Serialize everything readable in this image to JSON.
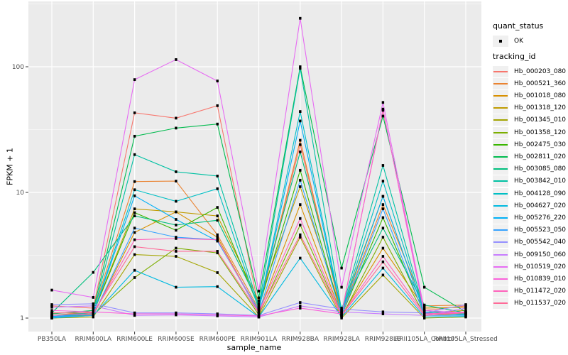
{
  "chart_data": {
    "type": "line",
    "xlabel": "sample_name",
    "ylabel": "FPKM + 1",
    "y_scale": "log10",
    "y_tick_labels": [
      "1",
      "10",
      "100"
    ],
    "y_tick_values": [
      1,
      10,
      100
    ],
    "ylim": [
      0.93,
      320
    ],
    "grid": "on",
    "panel_background": "#EBEBEB",
    "gridline_color": "#FFFFFF",
    "tick_label_color": "#4D4D4D",
    "point_color": "#000000",
    "legend_position": "right",
    "legends": {
      "quant_status_title": "quant_status",
      "ok_label": "OK",
      "tracking_id_title": "tracking_id"
    },
    "categories": [
      "PB350LA",
      "RRIM600LA",
      "RRIM600LE",
      "RRIM600SE",
      "RRIM600PE",
      "RRIM901LA",
      "RRIM928BA",
      "RRIM928LA",
      "RRIM928LB",
      "RRII105LA_Control",
      "RRII105LA_Stressed"
    ],
    "series": [
      {
        "name": "Hb_000203_080",
        "color": "#F8766D",
        "values": [
          1.25,
          1.2,
          43,
          39,
          49,
          1.2,
          24,
          1.1,
          45,
          1.15,
          1.25
        ]
      },
      {
        "name": "Hb_000521_360",
        "color": "#EA8331",
        "values": [
          1.05,
          1.12,
          12.2,
          12.3,
          4.6,
          1.18,
          26,
          1.08,
          8.0,
          1.25,
          1.27
        ]
      },
      {
        "name": "Hb_001018_080",
        "color": "#D89000",
        "values": [
          1.0,
          1.05,
          4.8,
          7.0,
          4.4,
          1.1,
          8.0,
          1.05,
          3.6,
          1.2,
          1.22
        ]
      },
      {
        "name": "Hb_001318_120",
        "color": "#C09B00",
        "values": [
          1.1,
          1.1,
          7.4,
          7.0,
          6.5,
          1.37,
          11.1,
          1.15,
          9.3,
          1.1,
          1.15
        ]
      },
      {
        "name": "Hb_001345_010",
        "color": "#A3A500",
        "values": [
          1.0,
          1.02,
          3.2,
          3.1,
          2.3,
          1.02,
          4.4,
          1.0,
          2.2,
          1.0,
          1.02
        ]
      },
      {
        "name": "Hb_001358_120",
        "color": "#7CAE00",
        "values": [
          1.02,
          1.06,
          2.1,
          3.6,
          3.3,
          1.06,
          5.5,
          1.02,
          4.4,
          1.05,
          1.08
        ]
      },
      {
        "name": "Hb_002475_030",
        "color": "#39B600",
        "values": [
          1.05,
          1.1,
          6.9,
          5.0,
          7.6,
          1.22,
          15,
          1.05,
          6.3,
          1.08,
          1.1
        ]
      },
      {
        "name": "Hb_002811_020",
        "color": "#00BB4E",
        "values": [
          1.08,
          1.15,
          28,
          32.5,
          35,
          1.45,
          100,
          2.5,
          40.5,
          1.76,
          1.12
        ]
      },
      {
        "name": "Hb_003085_080",
        "color": "#00BF7D",
        "values": [
          1.1,
          2.31,
          6.5,
          5.5,
          6.0,
          1.3,
          21,
          1.2,
          5.2,
          1.27,
          1.1
        ]
      },
      {
        "name": "Hb_003842_010",
        "color": "#00C1A3",
        "values": [
          1.05,
          1.1,
          20,
          14.6,
          13.5,
          1.25,
          97,
          1.15,
          16.4,
          1.15,
          1.08
        ]
      },
      {
        "name": "Hb_004128_090",
        "color": "#00BFC4",
        "values": [
          1.02,
          1.08,
          10.5,
          8.5,
          10.7,
          1.18,
          44,
          1.12,
          12.3,
          1.12,
          1.08
        ]
      },
      {
        "name": "Hb_004627_020",
        "color": "#00BAE0",
        "values": [
          1.0,
          1.05,
          2.4,
          1.76,
          1.78,
          1.02,
          3.0,
          1.02,
          2.5,
          1.02,
          1.03
        ]
      },
      {
        "name": "Hb_005276_220",
        "color": "#00B0F6",
        "values": [
          1.03,
          1.08,
          9.4,
          6.1,
          4.1,
          1.15,
          37,
          1.1,
          9.3,
          1.1,
          1.06
        ]
      },
      {
        "name": "Hb_005523_050",
        "color": "#35A2FF",
        "values": [
          1.02,
          1.05,
          5.2,
          4.4,
          4.2,
          1.1,
          12.5,
          1.05,
          7.4,
          1.05,
          1.05
        ]
      },
      {
        "name": "Hb_005542_040",
        "color": "#9590FF",
        "values": [
          1.28,
          1.3,
          1.1,
          1.1,
          1.08,
          1.05,
          1.33,
          1.18,
          1.12,
          1.1,
          1.28
        ]
      },
      {
        "name": "Hb_009150_060",
        "color": "#C77CFF",
        "values": [
          1.22,
          1.25,
          1.05,
          1.06,
          1.04,
          1.02,
          1.25,
          1.12,
          1.08,
          1.05,
          1.2
        ]
      },
      {
        "name": "Hb_010519_020",
        "color": "#E76BF3",
        "values": [
          1.67,
          1.46,
          79,
          114,
          77,
          1.64,
          243,
          1.76,
          52,
          1.15,
          1.1
        ]
      },
      {
        "name": "Hb_010839_010",
        "color": "#FA62DB",
        "values": [
          1.15,
          1.12,
          1.08,
          1.08,
          1.06,
          1.04,
          1.2,
          1.08,
          46,
          1.08,
          1.12
        ]
      },
      {
        "name": "Hb_011472_020",
        "color": "#FF62BC",
        "values": [
          1.05,
          1.08,
          4.2,
          4.3,
          4.2,
          1.12,
          6.2,
          1.05,
          3.1,
          1.08,
          1.1
        ]
      },
      {
        "name": "Hb_011537_020",
        "color": "#FF6A98",
        "values": [
          1.1,
          1.1,
          3.7,
          3.4,
          3.4,
          1.1,
          4.6,
          1.05,
          2.8,
          1.05,
          1.1
        ]
      }
    ]
  }
}
